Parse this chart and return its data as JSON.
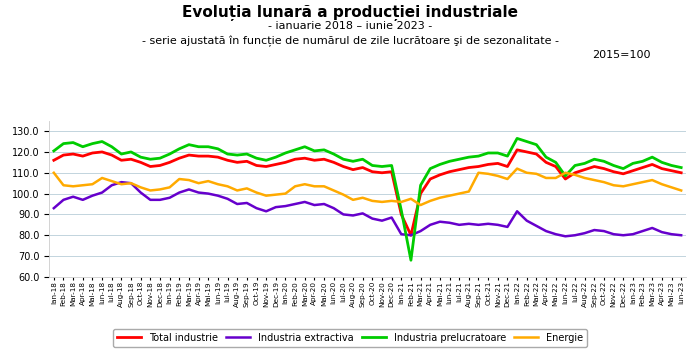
{
  "title": "Evoluția lunară a producției industriale",
  "subtitle1": "- ianuarie 2018 – iunie 2023 -",
  "subtitle2": "- serie ajustată în funcție de numărul de zile lucrătoare şi de sezonalitate -",
  "subtitle3": "2015=100",
  "ylim": [
    60.0,
    135.0
  ],
  "yticks": [
    60.0,
    70.0,
    80.0,
    90.0,
    100.0,
    110.0,
    120.0,
    130.0
  ],
  "legend": [
    "Total industrie",
    "Industria extractiva",
    "Industria prelucratoare",
    "Energie"
  ],
  "colors": [
    "#ff0000",
    "#6600cc",
    "#00cc00",
    "#ffaa00"
  ],
  "linewidths": [
    2.0,
    1.8,
    2.0,
    1.8
  ],
  "total_industrie": [
    116.0,
    118.5,
    119.0,
    118.0,
    119.5,
    120.0,
    118.5,
    116.0,
    116.5,
    115.0,
    113.0,
    113.5,
    115.0,
    117.0,
    118.5,
    118.0,
    118.0,
    117.5,
    116.0,
    115.0,
    115.5,
    113.5,
    113.0,
    114.0,
    115.0,
    116.5,
    117.0,
    116.0,
    116.5,
    115.0,
    113.0,
    111.5,
    112.5,
    110.5,
    110.0,
    110.5,
    90.0,
    80.0,
    100.0,
    107.0,
    109.0,
    110.5,
    111.5,
    112.5,
    113.0,
    114.0,
    114.5,
    113.0,
    121.0,
    120.0,
    119.0,
    115.0,
    113.0,
    107.0,
    110.0,
    111.5,
    113.0,
    112.0,
    110.5,
    109.5,
    111.0,
    112.5,
    114.0,
    112.0,
    111.0,
    110.0
  ],
  "industria_extractiva": [
    93.0,
    97.0,
    98.5,
    97.0,
    99.0,
    100.5,
    104.0,
    105.5,
    105.0,
    100.5,
    97.0,
    97.0,
    98.0,
    100.5,
    102.0,
    100.5,
    100.0,
    99.0,
    97.5,
    95.0,
    95.5,
    93.0,
    91.5,
    93.5,
    94.0,
    95.0,
    96.0,
    94.5,
    95.0,
    93.0,
    90.0,
    89.5,
    90.5,
    88.0,
    87.0,
    88.5,
    80.5,
    80.0,
    82.0,
    85.0,
    86.5,
    86.0,
    85.0,
    85.5,
    85.0,
    85.5,
    85.0,
    84.0,
    91.5,
    87.0,
    84.5,
    82.0,
    80.5,
    79.5,
    80.0,
    81.0,
    82.5,
    82.0,
    80.5,
    80.0,
    80.5,
    82.0,
    83.5,
    81.5,
    80.5,
    80.0
  ],
  "industria_prelucratoare": [
    120.5,
    124.0,
    124.5,
    122.5,
    124.0,
    125.0,
    122.5,
    119.0,
    120.0,
    117.5,
    116.5,
    117.0,
    119.0,
    121.5,
    123.5,
    122.5,
    122.5,
    121.5,
    119.0,
    118.5,
    119.0,
    117.0,
    116.0,
    117.5,
    119.5,
    121.0,
    122.5,
    120.5,
    121.0,
    119.0,
    116.5,
    115.5,
    116.5,
    113.5,
    113.0,
    113.5,
    92.0,
    68.0,
    104.0,
    112.0,
    114.0,
    115.5,
    116.5,
    117.5,
    118.0,
    119.5,
    119.5,
    118.0,
    126.5,
    125.0,
    123.5,
    117.5,
    115.0,
    108.5,
    113.5,
    114.5,
    116.5,
    115.5,
    113.5,
    112.0,
    114.5,
    115.5,
    117.5,
    115.0,
    113.5,
    112.5
  ],
  "energie": [
    110.0,
    104.0,
    103.5,
    104.0,
    104.5,
    107.5,
    106.0,
    104.5,
    105.0,
    103.0,
    101.5,
    102.0,
    103.0,
    107.0,
    106.5,
    105.0,
    106.0,
    104.5,
    103.5,
    101.5,
    102.5,
    100.5,
    99.0,
    99.5,
    100.0,
    103.5,
    104.5,
    103.5,
    103.5,
    101.5,
    99.5,
    97.0,
    98.0,
    96.5,
    96.0,
    96.5,
    96.0,
    97.5,
    94.5,
    96.5,
    98.0,
    99.0,
    100.0,
    101.0,
    110.0,
    109.5,
    108.5,
    107.0,
    112.0,
    110.0,
    109.5,
    107.5,
    107.5,
    110.0,
    109.0,
    107.5,
    106.5,
    105.5,
    104.0,
    103.5,
    104.5,
    105.5,
    106.5,
    104.5,
    103.0,
    101.5
  ],
  "x_labels": [
    "Ian-18",
    "Feb-18",
    "Mar-18",
    "Apr-18",
    "Mai-18",
    "Iun-18",
    "Iul-18",
    "Aug-18",
    "Sep-18",
    "Oct-18",
    "Nov-18",
    "Dec-18",
    "Ian-19",
    "Feb-19",
    "Mar-19",
    "Apr-19",
    "Mai-19",
    "Iun-19",
    "Iul-19",
    "Aug-19",
    "Sep-19",
    "Oct-19",
    "Nov-19",
    "Dec-19",
    "Ian-20",
    "Feb-20",
    "Mar-20",
    "Apr-20",
    "Mai-20",
    "Iun-20",
    "Iul-20",
    "Aug-20",
    "Sep-20",
    "Oct-20",
    "Nov-20",
    "Dec-20",
    "Ian-21",
    "Feb-21",
    "Mar-21",
    "Apr-21",
    "Mai-21",
    "Iun-21",
    "Iul-21",
    "Aug-21",
    "Sep-21",
    "Oct-21",
    "Nov-21",
    "Dec-21",
    "Ian-22",
    "Feb-22",
    "Mar-22",
    "Apr-22",
    "Mai-22",
    "Iun-22",
    "Iul-22",
    "Aug-22",
    "Sep-22",
    "Oct-22",
    "Nov-22",
    "Dec-22",
    "Ian-23",
    "Feb-23",
    "Mar-23",
    "Apr-23",
    "Mai-23",
    "Iun-23"
  ],
  "background_color": "#ffffff",
  "grid_color": "#b8cdd8",
  "tick_label_fontsize": 5.2,
  "y_tick_fontsize": 7.0,
  "title_fontsize": 11,
  "subtitle_fontsize": 8,
  "subtitle3_fontsize": 8
}
